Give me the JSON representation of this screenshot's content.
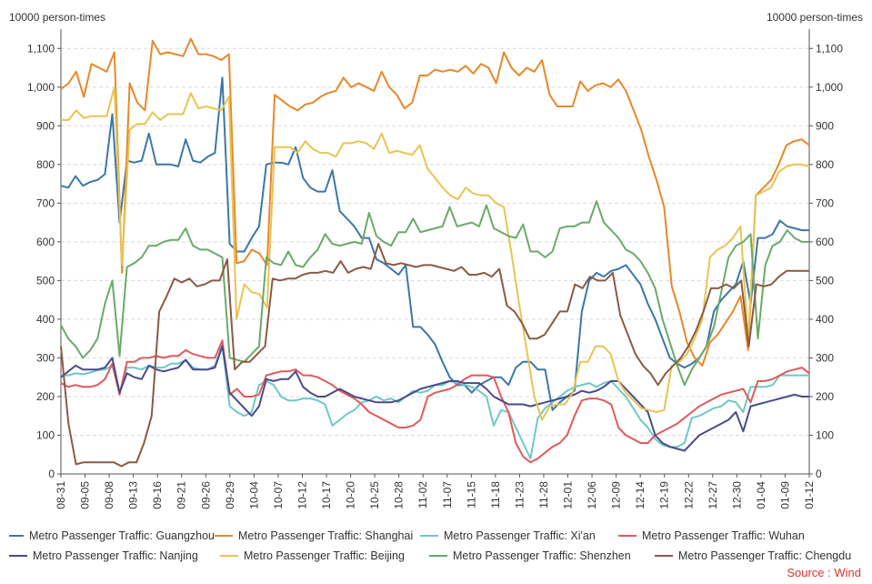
{
  "unit_left": "10000 person-times",
  "unit_right": "10000 person-times",
  "source": "Source : Wind",
  "chart_data": {
    "type": "line",
    "ylim": [
      0,
      1150
    ],
    "yticks": [
      "0",
      "100",
      "200",
      "300",
      "400",
      "500",
      "600",
      "700",
      "800",
      "900",
      "1,000",
      "1,100"
    ],
    "ytick_values": [
      0,
      100,
      200,
      300,
      400,
      500,
      600,
      700,
      800,
      900,
      1000,
      1100
    ],
    "x_tick_labels": [
      "08-31",
      "09-05",
      "09-08",
      "09-13",
      "09-16",
      "09-21",
      "09-26",
      "09-29",
      "10-04",
      "10-07",
      "10-12",
      "10-17",
      "10-20",
      "10-25",
      "10-28",
      "11-02",
      "11-07",
      "11-15",
      "11-18",
      "11-23",
      "11-28",
      "12-01",
      "12-06",
      "12-09",
      "12-14",
      "12-19",
      "12-22",
      "12-27",
      "12-30",
      "01-04",
      "01-09",
      "01-12"
    ],
    "grid": true,
    "legend_position": "bottom",
    "series": [
      {
        "name": "Metro Passenger Traffic: Guangzhou",
        "color": "#3b77a8",
        "values": [
          745,
          740,
          770,
          745,
          755,
          760,
          775,
          930,
          650,
          810,
          805,
          810,
          880,
          800,
          800,
          800,
          795,
          865,
          810,
          805,
          820,
          830,
          1025,
          595,
          575,
          575,
          610,
          640,
          800,
          805,
          805,
          800,
          845,
          765,
          740,
          730,
          730,
          785,
          680,
          660,
          640,
          610,
          610,
          555,
          545,
          530,
          515,
          540,
          380,
          380,
          360,
          335,
          290,
          250,
          230,
          230,
          210,
          230,
          240,
          250,
          250,
          230,
          275,
          290,
          290,
          270,
          270,
          165,
          185,
          200,
          215,
          420,
          500,
          520,
          510,
          525,
          530,
          540,
          515,
          490,
          440,
          400,
          350,
          300,
          285,
          275,
          285,
          300,
          330,
          420,
          450,
          470,
          490,
          550,
          440,
          610,
          610,
          620,
          655,
          640,
          635,
          630,
          630
        ]
      },
      {
        "name": "Metro Passenger Traffic: Shanghai",
        "color": "#e8882a",
        "values": [
          995,
          1010,
          1040,
          975,
          1060,
          1050,
          1040,
          1090,
          520,
          1010,
          960,
          940,
          1120,
          1085,
          1090,
          1085,
          1080,
          1125,
          1085,
          1085,
          1080,
          1070,
          1085,
          545,
          550,
          580,
          570,
          540,
          980,
          965,
          950,
          940,
          955,
          960,
          975,
          985,
          990,
          1025,
          1000,
          1010,
          1000,
          990,
          1040,
          1000,
          980,
          945,
          960,
          1030,
          1030,
          1045,
          1040,
          1045,
          1040,
          1055,
          1035,
          1060,
          1050,
          1010,
          1090,
          1050,
          1030,
          1050,
          1040,
          1070,
          980,
          950,
          950,
          950,
          1015,
          990,
          1005,
          1010,
          1000,
          1020,
          990,
          940,
          890,
          820,
          760,
          690,
          485,
          420,
          340,
          300,
          280,
          340,
          360,
          390,
          420,
          460,
          320,
          720,
          740,
          760,
          800,
          850,
          860,
          865,
          850
        ]
      },
      {
        "name": "Metro Passenger Traffic: Xi'an",
        "color": "#6dc8c8",
        "values": [
          255,
          255,
          260,
          258,
          262,
          268,
          270,
          280,
          210,
          275,
          275,
          270,
          280,
          275,
          275,
          285,
          285,
          295,
          275,
          270,
          270,
          280,
          335,
          175,
          160,
          150,
          160,
          230,
          240,
          230,
          200,
          190,
          190,
          195,
          195,
          190,
          180,
          125,
          140,
          155,
          165,
          185,
          190,
          200,
          190,
          195,
          185,
          200,
          215,
          210,
          215,
          230,
          230,
          240,
          235,
          230,
          225,
          215,
          200,
          125,
          165,
          160,
          120,
          80,
          40,
          145,
          170,
          185,
          200,
          215,
          225,
          230,
          235,
          225,
          235,
          240,
          220,
          200,
          170,
          140,
          120,
          90,
          75,
          70,
          70,
          80,
          145,
          150,
          160,
          170,
          175,
          190,
          185,
          160,
          225,
          225,
          225,
          230,
          255,
          255,
          255,
          255,
          255
        ]
      },
      {
        "name": "Metro Passenger Traffic: Wuhan",
        "color": "#e05a5a",
        "values": [
          235,
          225,
          230,
          225,
          225,
          230,
          245,
          285,
          205,
          290,
          290,
          300,
          300,
          305,
          300,
          305,
          305,
          320,
          310,
          305,
          300,
          300,
          345,
          205,
          220,
          200,
          200,
          205,
          255,
          260,
          265,
          265,
          270,
          255,
          255,
          250,
          240,
          230,
          215,
          205,
          195,
          180,
          160,
          150,
          140,
          130,
          120,
          120,
          125,
          140,
          200,
          210,
          215,
          220,
          230,
          245,
          255,
          255,
          255,
          250,
          200,
          160,
          80,
          45,
          30,
          40,
          55,
          70,
          80,
          100,
          150,
          190,
          195,
          195,
          190,
          180,
          120,
          100,
          90,
          80,
          80,
          100,
          110,
          120,
          130,
          145,
          160,
          175,
          185,
          195,
          205,
          210,
          215,
          220,
          185,
          240,
          240,
          245,
          255,
          265,
          270,
          275,
          260
        ]
      },
      {
        "name": "Metro Passenger Traffic: Nanjing",
        "color": "#4a4a8c",
        "values": [
          250,
          265,
          280,
          270,
          270,
          270,
          275,
          300,
          210,
          260,
          250,
          245,
          280,
          270,
          265,
          270,
          275,
          295,
          270,
          270,
          270,
          275,
          330,
          210,
          190,
          170,
          150,
          175,
          245,
          240,
          245,
          245,
          265,
          225,
          210,
          200,
          200,
          210,
          220,
          210,
          200,
          195,
          190,
          185,
          185,
          185,
          190,
          200,
          210,
          220,
          225,
          230,
          235,
          240,
          240,
          235,
          235,
          235,
          220,
          200,
          190,
          180,
          180,
          180,
          175,
          180,
          185,
          190,
          195,
          200,
          205,
          215,
          210,
          215,
          225,
          240,
          240,
          220,
          200,
          180,
          160,
          100,
          80,
          70,
          65,
          60,
          80,
          100,
          110,
          120,
          130,
          140,
          160,
          110,
          175,
          180,
          185,
          190,
          195,
          200,
          205,
          200,
          200
        ]
      },
      {
        "name": "Metro Passenger Traffic: Beijing",
        "color": "#e8c454",
        "values": [
          915,
          915,
          940,
          920,
          925,
          925,
          925,
          1000,
          540,
          890,
          905,
          905,
          935,
          915,
          930,
          930,
          930,
          985,
          945,
          950,
          945,
          940,
          975,
          400,
          490,
          470,
          465,
          430,
          845,
          845,
          845,
          830,
          860,
          840,
          830,
          830,
          820,
          855,
          855,
          860,
          855,
          840,
          880,
          830,
          835,
          830,
          825,
          850,
          790,
          765,
          740,
          720,
          710,
          740,
          725,
          720,
          720,
          700,
          690,
          570,
          440,
          320,
          200,
          140,
          175,
          180,
          180,
          210,
          290,
          290,
          330,
          330,
          310,
          240,
          210,
          190,
          170,
          165,
          160,
          165,
          280,
          290,
          310,
          350,
          400,
          560,
          580,
          590,
          610,
          640,
          345,
          720,
          730,
          740,
          780,
          795,
          800,
          800,
          795
        ]
      },
      {
        "name": "Metro Passenger Traffic: Shenzhen",
        "color": "#6aaa6a",
        "values": [
          385,
          350,
          330,
          300,
          320,
          350,
          440,
          500,
          305,
          535,
          545,
          560,
          590,
          590,
          600,
          605,
          605,
          635,
          590,
          580,
          580,
          570,
          560,
          300,
          295,
          290,
          310,
          330,
          560,
          545,
          540,
          575,
          540,
          535,
          560,
          580,
          620,
          595,
          590,
          595,
          600,
          595,
          675,
          615,
          600,
          590,
          625,
          625,
          660,
          625,
          630,
          635,
          640,
          690,
          640,
          645,
          650,
          640,
          695,
          635,
          625,
          615,
          610,
          645,
          575,
          575,
          560,
          575,
          635,
          640,
          640,
          650,
          650,
          705,
          650,
          630,
          610,
          580,
          570,
          550,
          520,
          480,
          400,
          340,
          280,
          230,
          270,
          300,
          330,
          380,
          470,
          560,
          590,
          600,
          620,
          350,
          540,
          590,
          600,
          630,
          610,
          600,
          600
        ]
      },
      {
        "name": "Metro Passenger Traffic: Chengdu",
        "color": "#8b5a44",
        "values": [
          330,
          130,
          25,
          30,
          30,
          30,
          30,
          30,
          20,
          30,
          30,
          80,
          150,
          420,
          460,
          505,
          495,
          505,
          485,
          490,
          500,
          500,
          555,
          270,
          290,
          290,
          310,
          330,
          505,
          500,
          505,
          505,
          515,
          520,
          520,
          525,
          520,
          550,
          520,
          530,
          535,
          530,
          595,
          545,
          540,
          545,
          540,
          535,
          540,
          540,
          535,
          530,
          525,
          535,
          515,
          515,
          520,
          510,
          530,
          435,
          420,
          390,
          350,
          350,
          360,
          390,
          420,
          420,
          490,
          480,
          510,
          500,
          500,
          520,
          410,
          360,
          310,
          280,
          260,
          230,
          260,
          280,
          300,
          330,
          370,
          420,
          480,
          480,
          490,
          480,
          500,
          330,
          490,
          485,
          490,
          510,
          525,
          525,
          525,
          525
        ]
      }
    ]
  }
}
